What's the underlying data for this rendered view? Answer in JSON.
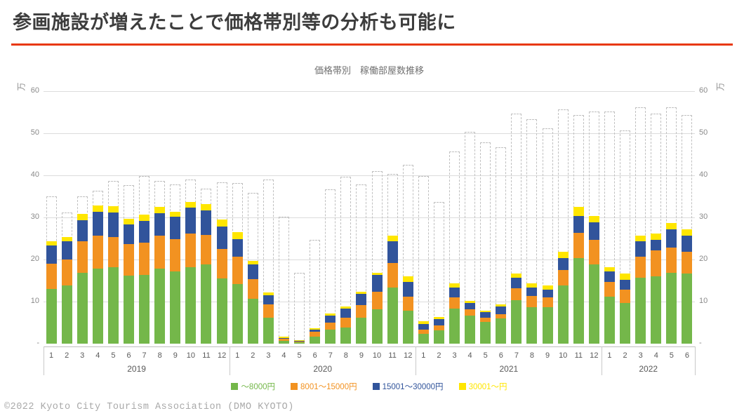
{
  "header": {
    "title": "参画施設が増えたことで価格帯別等の分析も可能に",
    "underline_color": "#e8380c"
  },
  "chart": {
    "title": "価格帯別　稼働部屋数推移",
    "y_axis_unit": "万",
    "y_ticks": [
      "60",
      "50",
      "40",
      "30",
      "20",
      "10",
      "-"
    ]
  },
  "chart_data": {
    "type": "bar",
    "stacked": true,
    "title": "価格帯別　稼働部屋数推移",
    "ylabel": "万",
    "ylim": [
      0,
      60
    ],
    "grid": true,
    "legend_position": "bottom",
    "x_groups": [
      {
        "year": "2019",
        "months": [
          "1",
          "2",
          "3",
          "4",
          "5",
          "6",
          "7",
          "8",
          "9",
          "10",
          "11",
          "12"
        ]
      },
      {
        "year": "2020",
        "months": [
          "1",
          "2",
          "3",
          "4",
          "5",
          "6",
          "7",
          "8",
          "9",
          "10",
          "11",
          "12"
        ]
      },
      {
        "year": "2021",
        "months": [
          "1",
          "2",
          "3",
          "4",
          "5",
          "6",
          "7",
          "8",
          "9",
          "10",
          "11",
          "12"
        ]
      },
      {
        "year": "2022",
        "months": [
          "1",
          "2",
          "3",
          "4",
          "5",
          "6"
        ]
      }
    ],
    "series": [
      {
        "name": "～8000円",
        "color": "#74b74a",
        "values": [
          13.0,
          13.8,
          16.8,
          17.8,
          18.1,
          16.2,
          16.4,
          17.8,
          17.2,
          18.2,
          18.8,
          15.5,
          14.2,
          10.6,
          6.1,
          0.6,
          0.3,
          1.7,
          3.4,
          3.9,
          6.1,
          8.1,
          13.3,
          7.9,
          2.3,
          3.2,
          8.4,
          6.6,
          5.1,
          6.0,
          10.3,
          8.6,
          8.6,
          13.8,
          20.3,
          18.8,
          11.1,
          9.6,
          15.7,
          16.0,
          16.8,
          16.6
        ]
      },
      {
        "name": "8001～15000円",
        "color": "#f29221",
        "values": [
          6.0,
          6.2,
          7.6,
          7.8,
          7.2,
          7.4,
          7.6,
          7.9,
          7.7,
          8.0,
          7.0,
          7.0,
          6.4,
          4.7,
          3.3,
          0.5,
          0.2,
          1.1,
          1.6,
          2.2,
          3.1,
          4.2,
          5.9,
          3.3,
          1.1,
          1.2,
          2.6,
          1.6,
          1.1,
          1.0,
          2.8,
          2.8,
          2.4,
          3.7,
          6.1,
          5.8,
          3.5,
          3.3,
          5.0,
          6.1,
          6.0,
          5.3
        ]
      },
      {
        "name": "15001～30000円",
        "color": "#31549b",
        "values": [
          4.3,
          4.3,
          4.9,
          5.8,
          5.8,
          4.8,
          5.2,
          5.3,
          5.2,
          6.1,
          5.9,
          5.4,
          4.3,
          3.6,
          2.1,
          0.2,
          0.1,
          0.6,
          1.7,
          2.3,
          2.7,
          4.1,
          5.1,
          3.5,
          1.3,
          1.4,
          2.4,
          1.4,
          1.3,
          1.8,
          2.5,
          1.9,
          1.8,
          2.8,
          3.9,
          4.2,
          2.6,
          2.2,
          3.6,
          2.5,
          4.3,
          3.8
        ]
      },
      {
        "name": "30001～円",
        "color": "#ffe600",
        "values": [
          1.0,
          1.0,
          1.6,
          1.5,
          1.6,
          1.3,
          1.4,
          1.5,
          1.3,
          1.3,
          1.4,
          1.6,
          1.6,
          0.7,
          0.7,
          0.4,
          0.2,
          0.3,
          0.4,
          0.5,
          0.4,
          0.5,
          1.4,
          1.3,
          0.6,
          0.6,
          1.0,
          0.5,
          0.4,
          0.5,
          1.1,
          1.0,
          1.0,
          1.5,
          2.2,
          1.6,
          1.0,
          1.5,
          1.4,
          1.6,
          1.5,
          1.5
        ]
      }
    ],
    "dashed_outline_totals": {
      "color": "#c0c0c0",
      "values": [
        35.0,
        31.2,
        35.0,
        36.4,
        38.6,
        37.7,
        39.9,
        38.6,
        37.8,
        39.0,
        36.8,
        38.3,
        38.1,
        35.8,
        39.0,
        30.1,
        16.9,
        24.7,
        36.6,
        39.6,
        37.9,
        41.0,
        40.4,
        42.5,
        39.9,
        33.6,
        45.7,
        50.3,
        47.9,
        46.7,
        54.6,
        53.4,
        51.2,
        55.7,
        54.3,
        55.1,
        55.1,
        50.6,
        56.2,
        54.7,
        56.2,
        54.3
      ]
    }
  },
  "footer": {
    "copyright": "©2022 Kyoto City Tourism Association (DMO KYOTO)"
  }
}
